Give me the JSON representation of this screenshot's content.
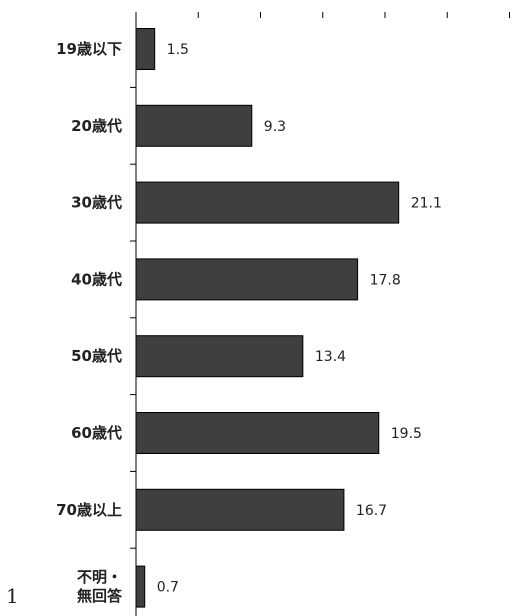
{
  "chart_data": {
    "type": "bar",
    "orientation": "horizontal",
    "categories": [
      "19歳以下",
      "20歳代",
      "30歳代",
      "40歳代",
      "50歳代",
      "60歳代",
      "70歳以上",
      "不明・\n無回答"
    ],
    "values": [
      1.5,
      9.3,
      21.1,
      17.8,
      13.4,
      19.5,
      16.7,
      0.7
    ],
    "xlim": [
      0,
      30
    ],
    "xtick_step": 5,
    "grid": false,
    "legend": "none",
    "bar_color": "#3f3f3f"
  },
  "page_number": "1"
}
